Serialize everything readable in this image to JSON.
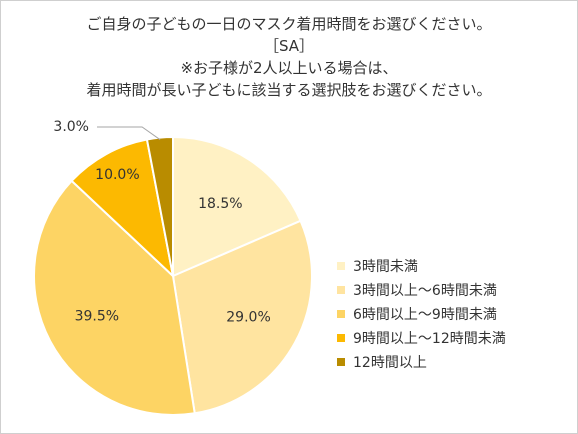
{
  "title": {
    "line1": "ご自身の子どもの一日のマスク着用時間をお選びください。",
    "line2": "［SA］",
    "line3": "※お子様が2人以上いる場合は、",
    "line4": "着用時間が長い子どもに該当する選択肢をお選びください。"
  },
  "chart_data": {
    "type": "pie",
    "start_angle_deg": 0,
    "direction": "clockwise",
    "unit": "%",
    "categories": [
      "3時間未満",
      "3時間以上～6時間未満",
      "6時間以上～9時間未満",
      "9時間以上～12時間未満",
      "12時間以上"
    ],
    "values": [
      18.5,
      29.0,
      39.5,
      10.0,
      3.0
    ],
    "labels": [
      "18.5%",
      "29.0%",
      "39.5%",
      "10.0%",
      "3.0%"
    ],
    "colors": [
      "#FFF1C4",
      "#FFE4A0",
      "#FDD464",
      "#FCB901",
      "#B98C00"
    ],
    "legend_position": "right"
  }
}
